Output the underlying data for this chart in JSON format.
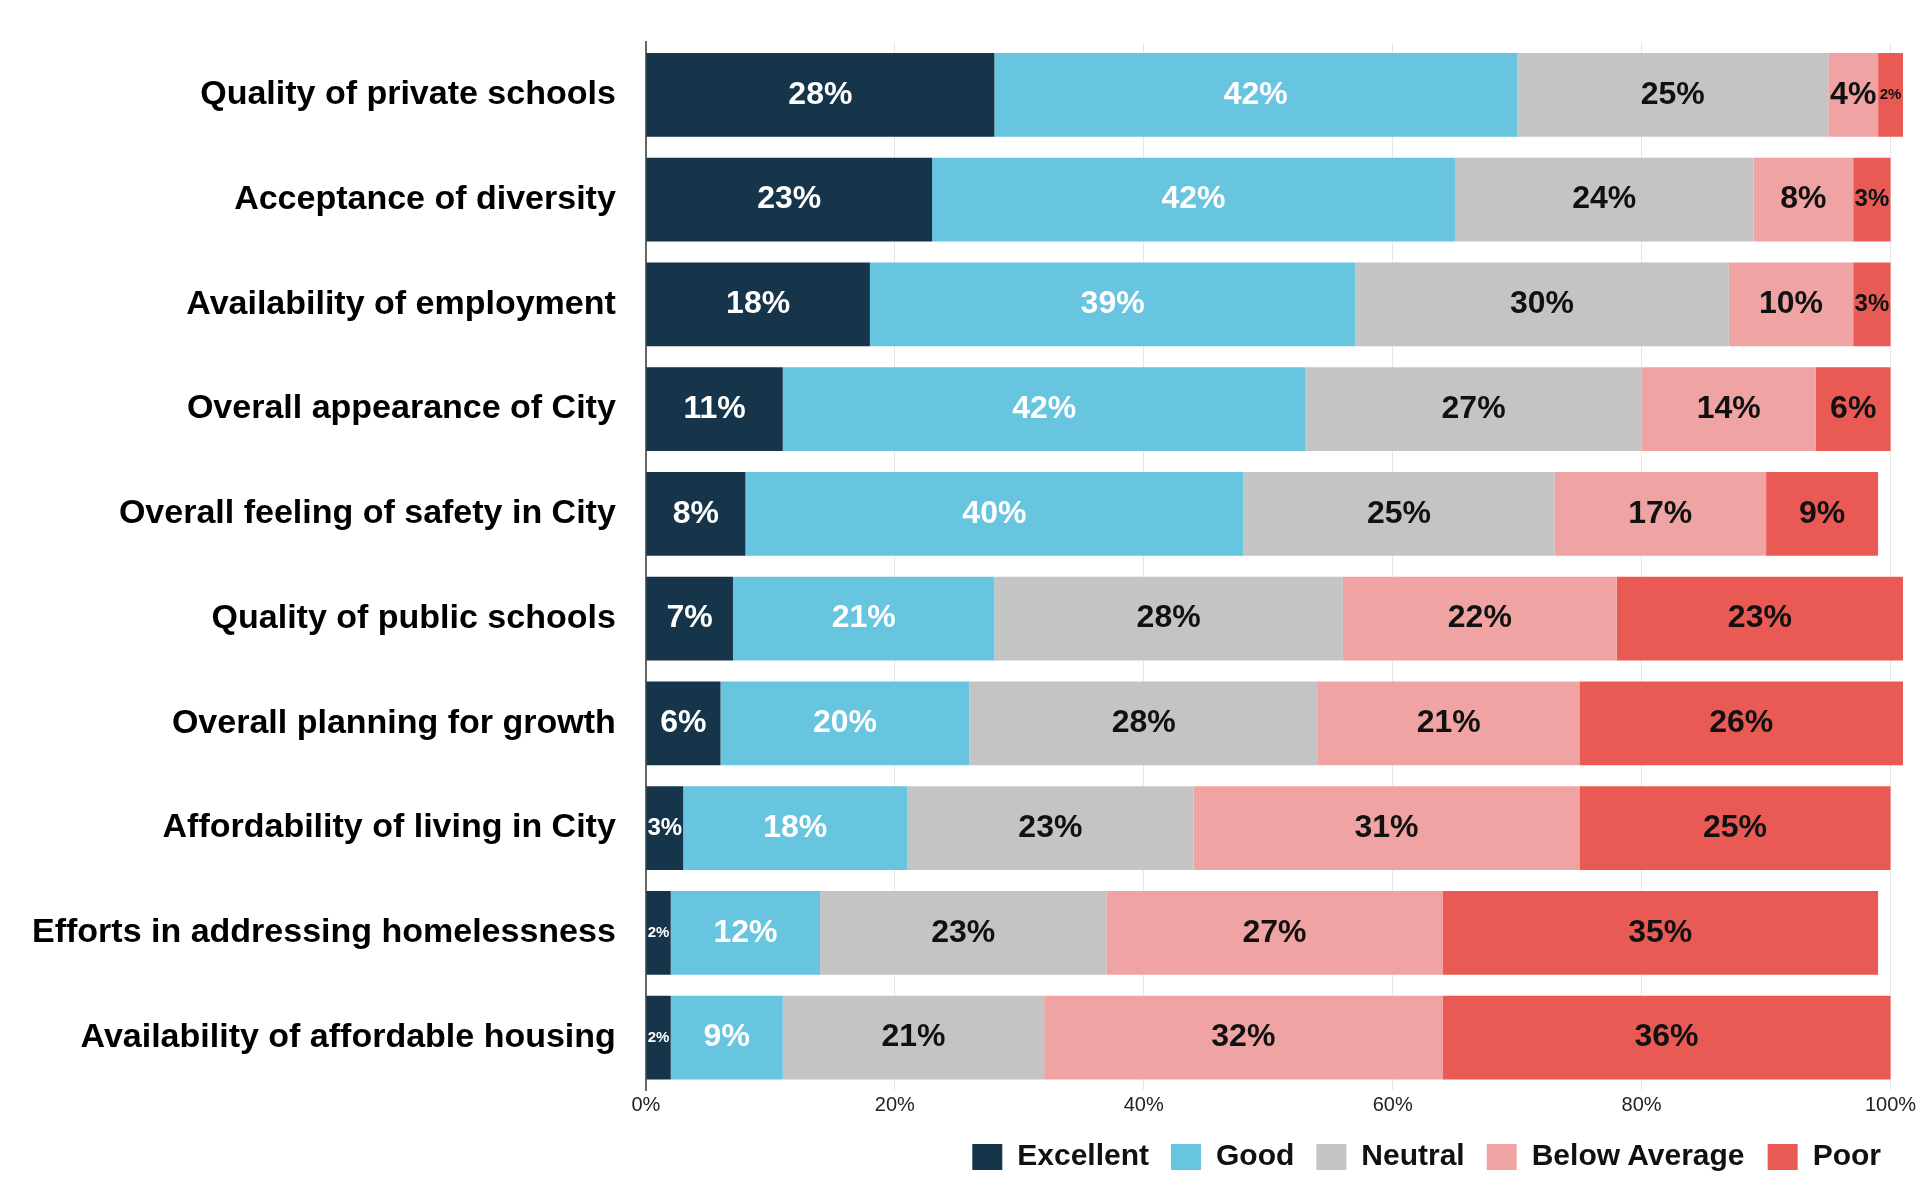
{
  "chart_data": {
    "type": "bar",
    "orientation": "horizontal",
    "stacked": true,
    "categories": [
      "Quality of private schools",
      "Acceptance of diversity",
      "Availability of employment",
      "Overall appearance of City",
      "Overall feeling of safety in City",
      "Quality of public schools",
      "Overall planning for growth",
      "Affordability of living in City",
      "Efforts in addressing homelessness",
      "Availability of affordable housing"
    ],
    "series": [
      {
        "name": "Excellent",
        "color": "#17354a",
        "values": [
          28,
          23,
          18,
          11,
          8,
          7,
          6,
          3,
          2,
          2
        ],
        "value_labels": [
          "28%",
          "23%",
          "18%",
          "11%",
          "8%",
          "7%",
          "6%",
          "3%",
          "2%",
          "2%"
        ]
      },
      {
        "name": "Good",
        "color": "#67c5df",
        "values": [
          42,
          42,
          39,
          42,
          40,
          21,
          20,
          18,
          12,
          9
        ],
        "value_labels": [
          "42%",
          "42%",
          "39%",
          "42%",
          "40%",
          "21%",
          "20%",
          "18%",
          "12%",
          "9%"
        ]
      },
      {
        "name": "Neutral",
        "color": "#c4c4c4",
        "values": [
          25,
          24,
          30,
          27,
          25,
          28,
          28,
          23,
          23,
          21
        ],
        "value_labels": [
          "25%",
          "24%",
          "30%",
          "27%",
          "25%",
          "28%",
          "28%",
          "23%",
          "23%",
          "21%"
        ]
      },
      {
        "name": "Below Average",
        "color": "#f0a3a3",
        "values": [
          4,
          8,
          10,
          14,
          17,
          22,
          21,
          31,
          27,
          32
        ],
        "value_labels": [
          "4%",
          "8%",
          "10%",
          "14%",
          "17%",
          "22%",
          "21%",
          "31%",
          "27%",
          "32%"
        ]
      },
      {
        "name": "Poor",
        "color": "#e95a55",
        "values": [
          2,
          3,
          3,
          6,
          9,
          23,
          26,
          25,
          35,
          36
        ],
        "value_labels": [
          "2%",
          "3%",
          "3%",
          "6%",
          "9%",
          "23%",
          "26%",
          "25%",
          "35%",
          "36%"
        ]
      }
    ],
    "xlim": [
      0,
      101
    ],
    "xticks": [
      {
        "value": 0,
        "label": "0%"
      },
      {
        "value": 20,
        "label": "20%"
      },
      {
        "value": 40,
        "label": "40%"
      },
      {
        "value": 60,
        "label": "60%"
      },
      {
        "value": 80,
        "label": "80%"
      },
      {
        "value": 100,
        "label": "100%"
      }
    ],
    "grid": "x",
    "legend": "bottom right"
  }
}
